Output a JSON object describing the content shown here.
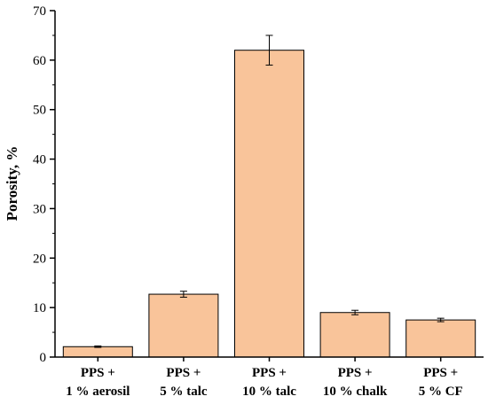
{
  "chart_data": {
    "type": "bar",
    "title": "",
    "xlabel": "",
    "ylabel": "Porosity, %",
    "categories": [
      [
        "PPS +",
        "1 % aerosil"
      ],
      [
        "PPS +",
        "5 % talc"
      ],
      [
        "PPS +",
        "10 % talc"
      ],
      [
        "PPS +",
        "10 % chalk"
      ],
      [
        "PPS +",
        "5 % CF"
      ]
    ],
    "values": [
      2.1,
      12.7,
      62.0,
      9.0,
      7.5
    ],
    "errors": [
      0.15,
      0.6,
      3.0,
      0.45,
      0.35
    ],
    "ylim": [
      0,
      70
    ],
    "yticks": [
      0,
      10,
      20,
      30,
      40,
      50,
      60,
      70
    ],
    "grid": false,
    "legend": "none",
    "colors": {
      "bar_fill": "#f9c49a",
      "bar_stroke": "#000000",
      "axis": "#000000"
    }
  }
}
